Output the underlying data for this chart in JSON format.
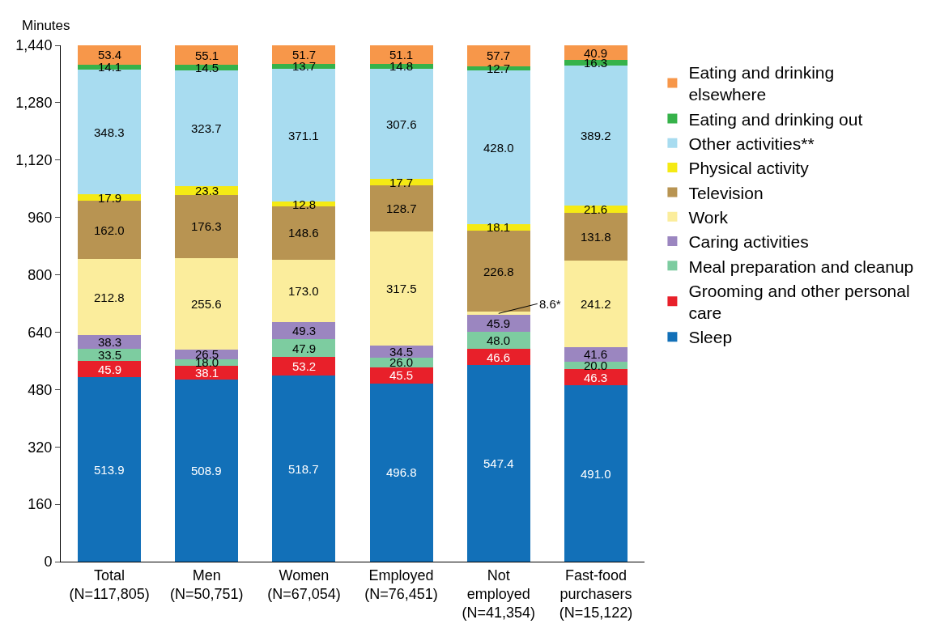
{
  "chart_data": {
    "type": "bar",
    "stacked": true,
    "ylabel": "Minutes",
    "categories": [
      "Total\n(N=117,805)",
      "Men\n(N=50,751)",
      "Women\n(N=67,054)",
      "Employed\n(N=76,451)",
      "Not\nemployed\n(N=41,354)",
      "Fast-food\npurchasers\n(N=15,122)"
    ],
    "series": [
      {
        "name": "Sleep",
        "color": "#1270b8",
        "values": [
          513.9,
          508.9,
          518.7,
          496.8,
          547.4,
          491.0
        ],
        "value_labels": [
          "513.9",
          "508.9",
          "518.7",
          "496.8",
          "547.4",
          "491.0"
        ]
      },
      {
        "name": "Grooming and other personal care",
        "color": "#e8202a",
        "values": [
          45.9,
          38.1,
          53.2,
          45.5,
          46.6,
          46.3
        ],
        "value_labels": [
          "45.9",
          "38.1",
          "53.2",
          "45.5",
          "46.6",
          "46.3"
        ]
      },
      {
        "name": "Meal preparation and cleanup",
        "color": "#7dcca0",
        "values": [
          33.5,
          18.0,
          47.9,
          26.0,
          48.0,
          20.0
        ],
        "value_labels": [
          "33.5",
          "18.0",
          "47.9",
          "26.0",
          "48.0",
          "20.0"
        ]
      },
      {
        "name": "Caring activities",
        "color": "#9b86c0",
        "values": [
          38.3,
          26.5,
          49.3,
          34.5,
          45.9,
          41.6
        ],
        "value_labels": [
          "38.3",
          "26.5",
          "49.3",
          "34.5",
          "45.9",
          "41.6"
        ]
      },
      {
        "name": "Work",
        "color": "#fbed9c",
        "values": [
          212.8,
          255.6,
          173.0,
          317.5,
          8.6,
          241.2
        ],
        "value_labels": [
          "212.8",
          "255.6",
          "173.0",
          "317.5",
          "8.6*",
          "241.2"
        ]
      },
      {
        "name": "Television",
        "color": "#b89452",
        "values": [
          162.0,
          176.3,
          148.6,
          128.7,
          226.8,
          131.8
        ],
        "value_labels": [
          "162.0",
          "176.3",
          "148.6",
          "128.7",
          "226.8",
          "131.8"
        ]
      },
      {
        "name": "Physical activity",
        "color": "#f5ea14",
        "values": [
          17.9,
          23.3,
          12.8,
          17.7,
          18.1,
          21.6
        ],
        "value_labels": [
          "17.9",
          "23.3",
          "12.8",
          "17.7",
          "18.1",
          "21.6"
        ]
      },
      {
        "name": "Other activities**",
        "color": "#a8dcf0",
        "values": [
          348.3,
          323.7,
          371.1,
          307.6,
          428.0,
          389.2
        ],
        "value_labels": [
          "348.3",
          "323.7",
          "371.1",
          "307.6",
          "428.0",
          "389.2"
        ]
      },
      {
        "name": "Eating and drinking out",
        "color": "#36b24a",
        "values": [
          14.1,
          14.5,
          13.7,
          14.8,
          12.7,
          16.3
        ],
        "value_labels": [
          "14.1",
          "14.5",
          "13.7",
          "14.8",
          "12.7",
          "16.3"
        ]
      },
      {
        "name": "Eating and drinking elsewhere",
        "color": "#f7974a",
        "values": [
          53.4,
          55.1,
          51.7,
          51.1,
          57.7,
          40.9
        ],
        "value_labels": [
          "53.4",
          "55.1",
          "51.7",
          "51.1",
          "57.7",
          "40.9"
        ]
      }
    ],
    "ylim": [
      0,
      1440
    ],
    "yticks": [
      0,
      160,
      320,
      480,
      640,
      800,
      960,
      {
        "value": 1120,
        "label": "1,120"
      },
      {
        "value": 1280,
        "label": "1,280"
      },
      {
        "value": 1440,
        "label": "1,440"
      }
    ],
    "grid": false,
    "legend": "right"
  }
}
